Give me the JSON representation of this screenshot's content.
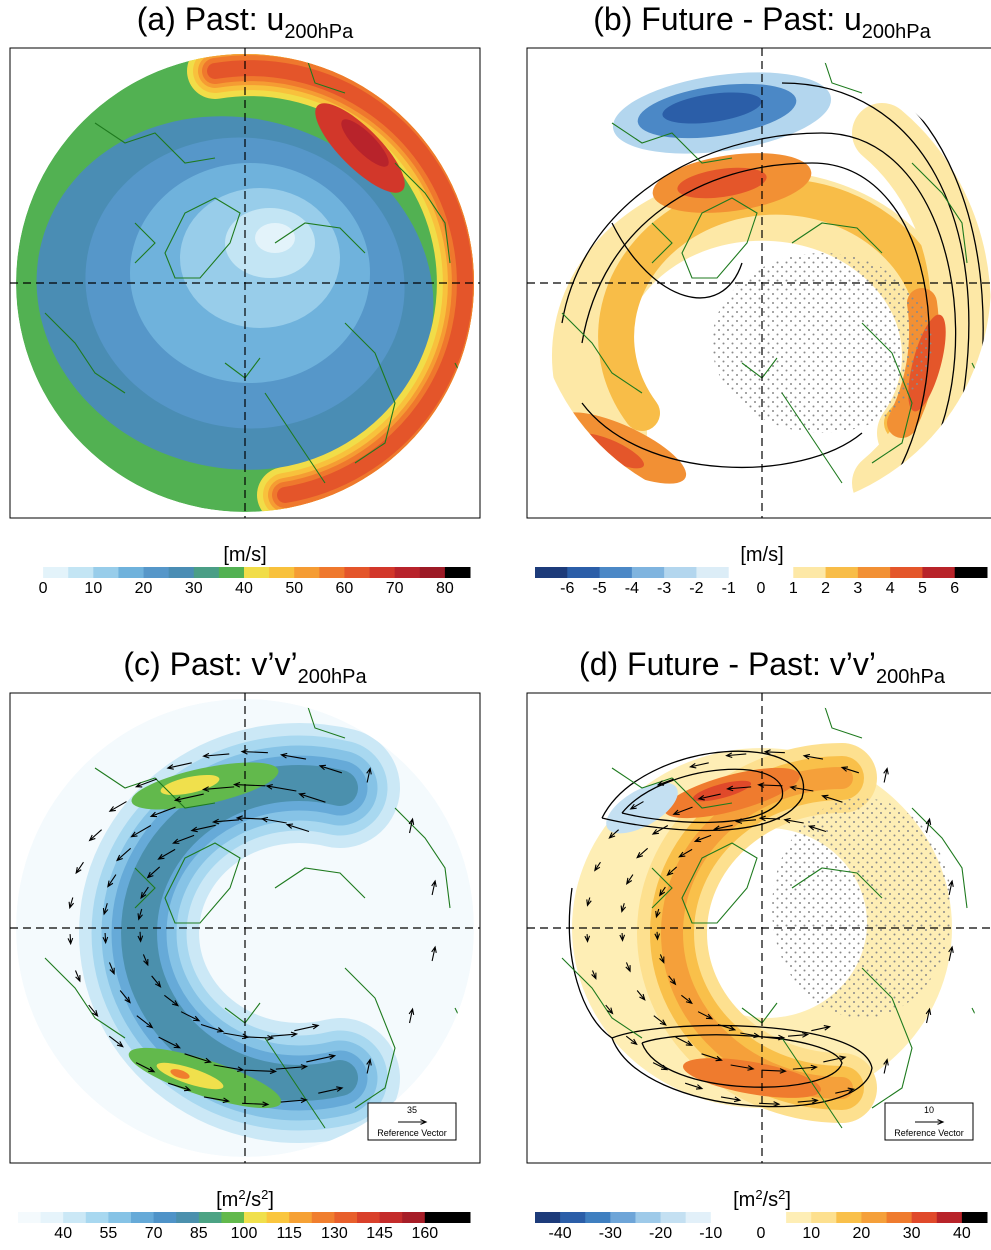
{
  "panels": [
    {
      "title": "(a) Past: u",
      "title_sub": "200hPa",
      "colorbar": {
        "unit": [
          "[m/s]"
        ],
        "tick_labels": [
          0,
          10,
          20,
          30,
          40,
          50,
          60,
          70,
          80
        ],
        "colors": [
          "#ffffff",
          "#e3f3fa",
          "#c3e5f4",
          "#98cdea",
          "#6fb2dc",
          "#5697c9",
          "#4a8db4",
          "#4a9e86",
          "#52b152",
          "#f1dd48",
          "#f8c13c",
          "#f59c33",
          "#ef782d",
          "#e4552a",
          "#d2372a",
          "#b8232b",
          "#9c1a26",
          "#000000"
        ]
      }
    },
    {
      "title": "(b) Future - Past: u",
      "title_sub": "200hPa",
      "colorbar": {
        "unit": [
          "[m/s]"
        ],
        "tick_labels": [
          -6,
          -5,
          -4,
          -3,
          -2,
          -1,
          0,
          1,
          2,
          3,
          4,
          5,
          6
        ],
        "colors": [
          "#1d3b7a",
          "#2b5ea8",
          "#4b88c6",
          "#7fb4df",
          "#b3d6ee",
          "#dcedf7",
          "#ffffff",
          "#ffffff",
          "#fde8a6",
          "#f8bd48",
          "#f29034",
          "#e4562a",
          "#b82329",
          "#000000"
        ]
      }
    },
    {
      "title": "(c) Past: v’v’",
      "title_sub": "200hPa",
      "colorbar": {
        "unit": [
          "[m",
          "2",
          "/s",
          "2",
          "]"
        ],
        "tick_labels": [
          40,
          55,
          70,
          85,
          100,
          115,
          130,
          145,
          160
        ],
        "colors": [
          "#f4fafd",
          "#e6f4fb",
          "#cbe8f6",
          "#a8d8f0",
          "#86c3e6",
          "#66aad8",
          "#4f93c8",
          "#4b90ad",
          "#4ca384",
          "#62b94c",
          "#f0e04c",
          "#fac63e",
          "#f6a134",
          "#f07e2e",
          "#e85f2b",
          "#d9402a",
          "#c42b2a",
          "#a61d27",
          "#000000",
          "#000000"
        ]
      },
      "reference_vector": {
        "value": 35,
        "label": "Reference Vector"
      }
    },
    {
      "title": "(d) Future - Past: v’v’",
      "title_sub": "200hPa",
      "colorbar": {
        "unit": [
          "[m",
          "2",
          "/s",
          "2",
          "]"
        ],
        "tick_labels": [
          -40,
          -30,
          -20,
          -10,
          0,
          10,
          20,
          30,
          40
        ],
        "colors": [
          "#1d3b7a",
          "#2b5ea8",
          "#3f7fc0",
          "#6ea5d8",
          "#9ecae9",
          "#c4e0f2",
          "#e2f0f9",
          "#ffffff",
          "#ffffff",
          "#ffffff",
          "#feeeb5",
          "#fde08f",
          "#f9c04a",
          "#f5a03a",
          "#ef7b2e",
          "#e0492a",
          "#b82329",
          "#000000"
        ]
      },
      "reference_vector": {
        "value": 10,
        "label": "Reference Vector"
      }
    }
  ]
}
